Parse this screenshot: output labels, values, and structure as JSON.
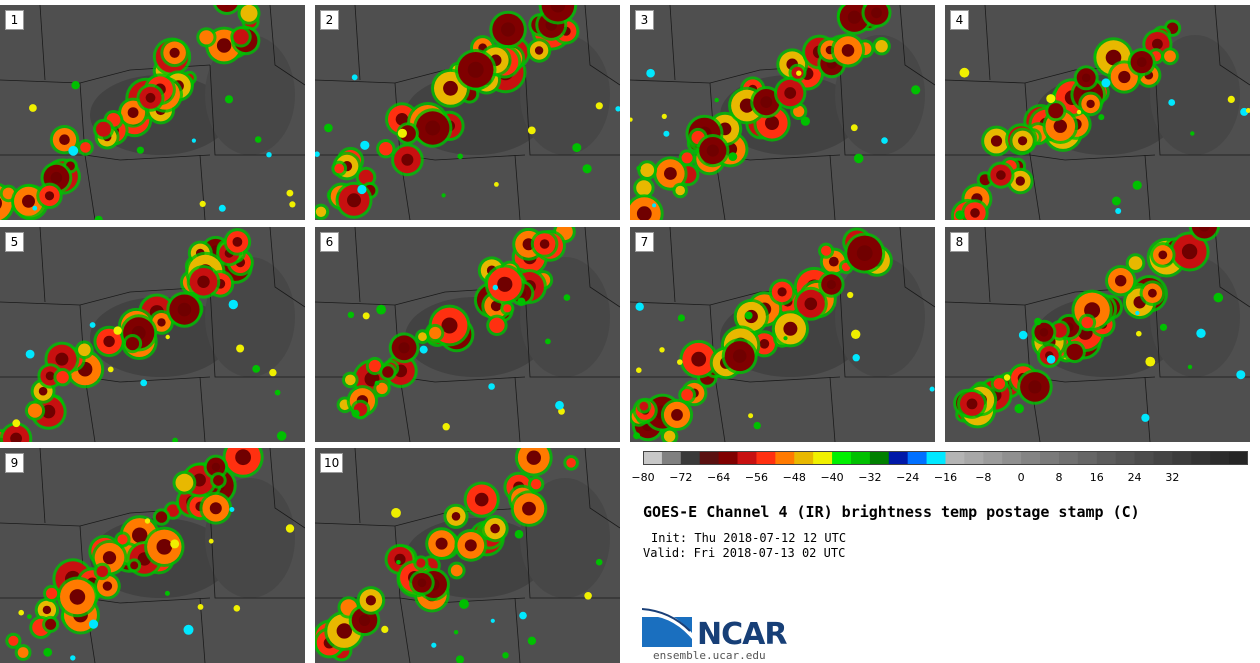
{
  "panels": [
    {
      "label": "1"
    },
    {
      "label": "2"
    },
    {
      "label": "3"
    },
    {
      "label": "4"
    },
    {
      "label": "5"
    },
    {
      "label": "6"
    },
    {
      "label": "7"
    },
    {
      "label": "8"
    },
    {
      "label": "9"
    },
    {
      "label": "10"
    }
  ],
  "colorbar": {
    "colors": [
      "#c8c8c8",
      "#808080",
      "#3a3a3a",
      "#5a1010",
      "#800000",
      "#c81010",
      "#ff3010",
      "#ff7a00",
      "#e8b800",
      "#f0f000",
      "#00f000",
      "#00c000",
      "#008000",
      "#0018a8",
      "#0070ff",
      "#00e8ff",
      "#b4b4b4",
      "#a8a8a8",
      "#9c9c9c",
      "#909090",
      "#848484",
      "#7a7a7a",
      "#707070",
      "#666666",
      "#5c5c5c",
      "#545454",
      "#4c4c4c",
      "#444444",
      "#3c3c3c",
      "#343434",
      "#2c2c2c",
      "#262626"
    ],
    "ticks": [
      "−80",
      "−72",
      "−64",
      "−56",
      "−48",
      "−40",
      "−32",
      "−24",
      "−16",
      "−8",
      "0",
      "8",
      "16",
      "24",
      "32"
    ]
  },
  "title": "GOES-E Channel 4 (IR) brightness temp postage stamp (C)",
  "init": "Init: Thu 2018-07-12 12 UTC",
  "valid": "Valid: Fri 2018-07-13 02 UTC",
  "logo": {
    "text": "NCAR",
    "url": "ensemble.ucar.edu"
  }
}
